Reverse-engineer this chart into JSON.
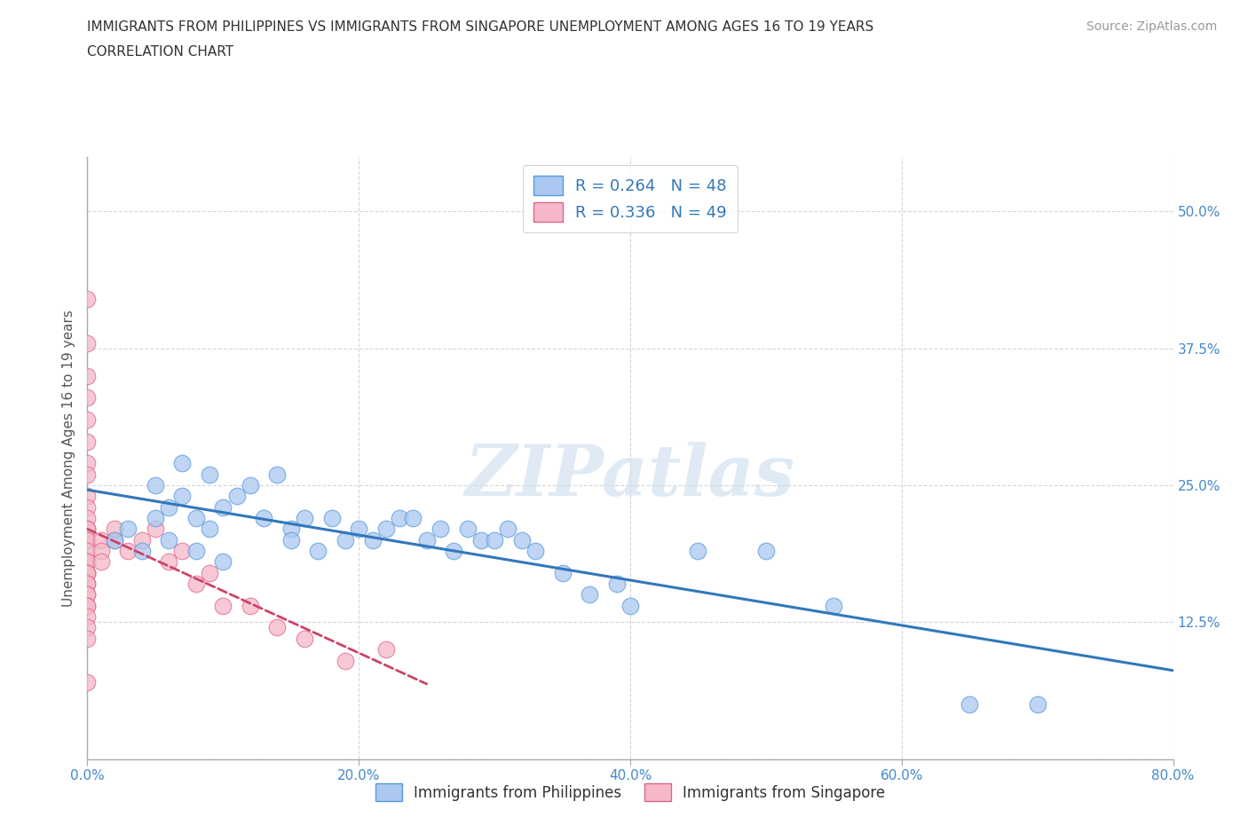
{
  "title_line1": "IMMIGRANTS FROM PHILIPPINES VS IMMIGRANTS FROM SINGAPORE UNEMPLOYMENT AMONG AGES 16 TO 19 YEARS",
  "title_line2": "CORRELATION CHART",
  "source_text": "Source: ZipAtlas.com",
  "ylabel": "Unemployment Among Ages 16 to 19 years",
  "xlim": [
    0.0,
    0.8
  ],
  "ylim": [
    0.0,
    0.55
  ],
  "xticks": [
    0.0,
    0.2,
    0.4,
    0.6,
    0.8
  ],
  "xticklabels": [
    "0.0%",
    "20.0%",
    "40.0%",
    "60.0%",
    "80.0%"
  ],
  "yticks": [
    0.0,
    0.125,
    0.25,
    0.375,
    0.5
  ],
  "yticklabels": [
    "",
    "12.5%",
    "25.0%",
    "37.5%",
    "50.0%"
  ],
  "grid_color": "#cccccc",
  "background_color": "#ffffff",
  "watermark_text": "ZIPatlas",
  "philippines_color": "#aac8f0",
  "singapore_color": "#f5b8c8",
  "philippines_edge_color": "#5599dd",
  "singapore_edge_color": "#dd6688",
  "philippines_line_color": "#3377bb",
  "singapore_line_color": "#cc4466",
  "R_philippines": 0.264,
  "N_philippines": 48,
  "R_singapore": 0.336,
  "N_singapore": 49,
  "philippines_x": [
    0.02,
    0.03,
    0.04,
    0.05,
    0.05,
    0.06,
    0.06,
    0.07,
    0.07,
    0.08,
    0.08,
    0.09,
    0.09,
    0.1,
    0.1,
    0.11,
    0.12,
    0.13,
    0.14,
    0.15,
    0.15,
    0.16,
    0.17,
    0.18,
    0.19,
    0.2,
    0.21,
    0.22,
    0.23,
    0.24,
    0.25,
    0.26,
    0.27,
    0.28,
    0.29,
    0.3,
    0.31,
    0.32,
    0.33,
    0.35,
    0.37,
    0.39,
    0.4,
    0.45,
    0.5,
    0.55,
    0.65,
    0.7
  ],
  "philippines_y": [
    0.2,
    0.21,
    0.19,
    0.22,
    0.25,
    0.23,
    0.2,
    0.27,
    0.24,
    0.22,
    0.19,
    0.26,
    0.21,
    0.23,
    0.18,
    0.24,
    0.25,
    0.22,
    0.26,
    0.21,
    0.2,
    0.22,
    0.19,
    0.22,
    0.2,
    0.21,
    0.2,
    0.21,
    0.22,
    0.22,
    0.2,
    0.21,
    0.19,
    0.21,
    0.2,
    0.2,
    0.21,
    0.2,
    0.19,
    0.17,
    0.15,
    0.16,
    0.14,
    0.19,
    0.19,
    0.14,
    0.05,
    0.05
  ],
  "singapore_x": [
    0.0,
    0.0,
    0.0,
    0.0,
    0.0,
    0.0,
    0.0,
    0.0,
    0.0,
    0.0,
    0.0,
    0.0,
    0.0,
    0.0,
    0.0,
    0.0,
    0.0,
    0.0,
    0.0,
    0.0,
    0.0,
    0.0,
    0.0,
    0.0,
    0.0,
    0.0,
    0.0,
    0.0,
    0.0,
    0.0,
    0.0,
    0.01,
    0.01,
    0.01,
    0.02,
    0.02,
    0.03,
    0.04,
    0.05,
    0.06,
    0.07,
    0.08,
    0.09,
    0.1,
    0.12,
    0.14,
    0.16,
    0.19,
    0.22
  ],
  "singapore_y": [
    0.42,
    0.38,
    0.35,
    0.33,
    0.31,
    0.29,
    0.27,
    0.26,
    0.24,
    0.23,
    0.22,
    0.21,
    0.21,
    0.2,
    0.2,
    0.19,
    0.18,
    0.18,
    0.17,
    0.17,
    0.17,
    0.16,
    0.16,
    0.15,
    0.15,
    0.14,
    0.14,
    0.13,
    0.12,
    0.11,
    0.07,
    0.2,
    0.19,
    0.18,
    0.2,
    0.21,
    0.19,
    0.2,
    0.21,
    0.18,
    0.19,
    0.16,
    0.17,
    0.14,
    0.14,
    0.12,
    0.11,
    0.09,
    0.1
  ]
}
